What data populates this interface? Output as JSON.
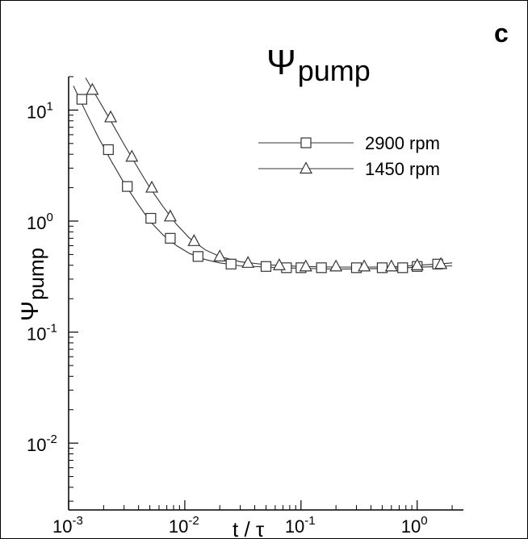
{
  "panel_label": "c",
  "chart_data": {
    "type": "scatter",
    "title_symbol": "Ψ",
    "title_sub": "pump",
    "ylabel_symbol": "Ψ",
    "ylabel_sub": "pump",
    "xlabel": "t / τ",
    "xscale": "log",
    "yscale": "log",
    "xlim": [
      0.001,
      2.5
    ],
    "ylim": [
      0.0025,
      20
    ],
    "grid": false,
    "legend_position": "top-right",
    "x_ticks": [
      {
        "value": 0.001,
        "base": "10",
        "exp": "-3"
      },
      {
        "value": 0.01,
        "base": "10",
        "exp": "-2"
      },
      {
        "value": 0.1,
        "base": "10",
        "exp": "-1"
      },
      {
        "value": 1,
        "base": "10",
        "exp": "0"
      }
    ],
    "y_ticks": [
      {
        "value": 0.01,
        "base": "10",
        "exp": "-2"
      },
      {
        "value": 0.1,
        "base": "10",
        "exp": "-1"
      },
      {
        "value": 1,
        "base": "10",
        "exp": "0"
      },
      {
        "value": 10,
        "base": "10",
        "exp": "1"
      }
    ],
    "series": [
      {
        "name": "2900 rpm",
        "marker": "square",
        "x": [
          0.0013,
          0.0022,
          0.0032,
          0.0051,
          0.0075,
          0.013,
          0.025,
          0.05,
          0.075,
          0.1,
          0.15,
          0.3,
          0.5,
          0.75,
          1.0,
          1.5
        ],
        "y": [
          12.5,
          4.4,
          2.05,
          1.06,
          0.7,
          0.48,
          0.41,
          0.39,
          0.38,
          0.38,
          0.38,
          0.38,
          0.38,
          0.38,
          0.39,
          0.41
        ],
        "curve_x": [
          0.0011,
          0.0014,
          0.0018,
          0.0023,
          0.003,
          0.004,
          0.005,
          0.0065,
          0.0085,
          0.011,
          0.015,
          0.02,
          0.03,
          0.05,
          0.1,
          0.2,
          0.4,
          0.7,
          1.0,
          1.5,
          2.0
        ],
        "curve_y": [
          16.5,
          9.7,
          5.7,
          3.55,
          2.2,
          1.4,
          1.0,
          0.75,
          0.6,
          0.51,
          0.45,
          0.42,
          0.395,
          0.385,
          0.375,
          0.37,
          0.372,
          0.378,
          0.383,
          0.39,
          0.395
        ]
      },
      {
        "name": "1450 rpm",
        "marker": "triangle",
        "x": [
          0.0016,
          0.0023,
          0.0035,
          0.0052,
          0.0075,
          0.012,
          0.02,
          0.035,
          0.065,
          0.11,
          0.2,
          0.35,
          0.6,
          1.0,
          1.6
        ],
        "y": [
          15.2,
          8.6,
          3.8,
          2.0,
          1.1,
          0.66,
          0.48,
          0.42,
          0.4,
          0.39,
          0.39,
          0.39,
          0.39,
          0.4,
          0.41
        ],
        "curve_x": [
          0.0014,
          0.0018,
          0.0023,
          0.003,
          0.004,
          0.005,
          0.0065,
          0.0085,
          0.011,
          0.015,
          0.02,
          0.03,
          0.05,
          0.1,
          0.2,
          0.4,
          0.7,
          1.0,
          1.5,
          2.0
        ],
        "curve_y": [
          19.5,
          12.5,
          8.0,
          4.9,
          2.95,
          2.0,
          1.35,
          0.93,
          0.7,
          0.55,
          0.48,
          0.43,
          0.405,
          0.39,
          0.385,
          0.385,
          0.39,
          0.4,
          0.41,
          0.42
        ]
      }
    ]
  }
}
